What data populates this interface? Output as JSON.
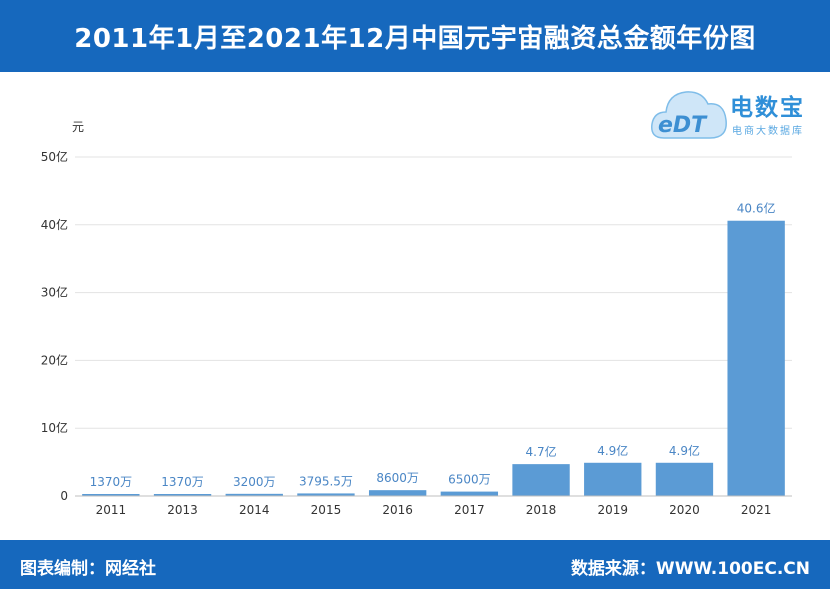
{
  "header": {
    "title": "2011年1月至2021年12月中国元宇宙融资总金额年份图"
  },
  "logo": {
    "mark_text": "eDT",
    "name": "电数宝",
    "subtitle": "电商大数据库"
  },
  "footer": {
    "left": "图表编制：网经社",
    "right": "数据来源：WWW.100EC.CN"
  },
  "colors": {
    "header_bg": "#1668bd",
    "bar": "#5b9bd5",
    "label": "#4a86c5"
  },
  "chart_data": {
    "type": "bar",
    "title": "2011年1月至2021年12月中国元宇宙融资总金额年份图",
    "ylabel": "元",
    "xlabel": "",
    "categories": [
      "2011",
      "2013",
      "2014",
      "2015",
      "2016",
      "2017",
      "2018",
      "2019",
      "2020",
      "2021"
    ],
    "values": [
      0.137,
      0.137,
      0.32,
      0.37955,
      0.86,
      0.65,
      4.7,
      4.9,
      4.9,
      40.6
    ],
    "value_unit": "亿元",
    "data_labels": [
      "1370万",
      "1370万",
      "3200万",
      "3795.5万",
      "8600万",
      "6500万",
      "4.7亿",
      "4.9亿",
      "4.9亿",
      "40.6亿"
    ],
    "ylim": [
      0,
      50
    ],
    "yticks": [
      0,
      10,
      20,
      30,
      40,
      50
    ],
    "ytick_labels": [
      "0",
      "10亿",
      "20亿",
      "30亿",
      "40亿",
      "50亿"
    ],
    "grid": true,
    "legend": "none"
  }
}
